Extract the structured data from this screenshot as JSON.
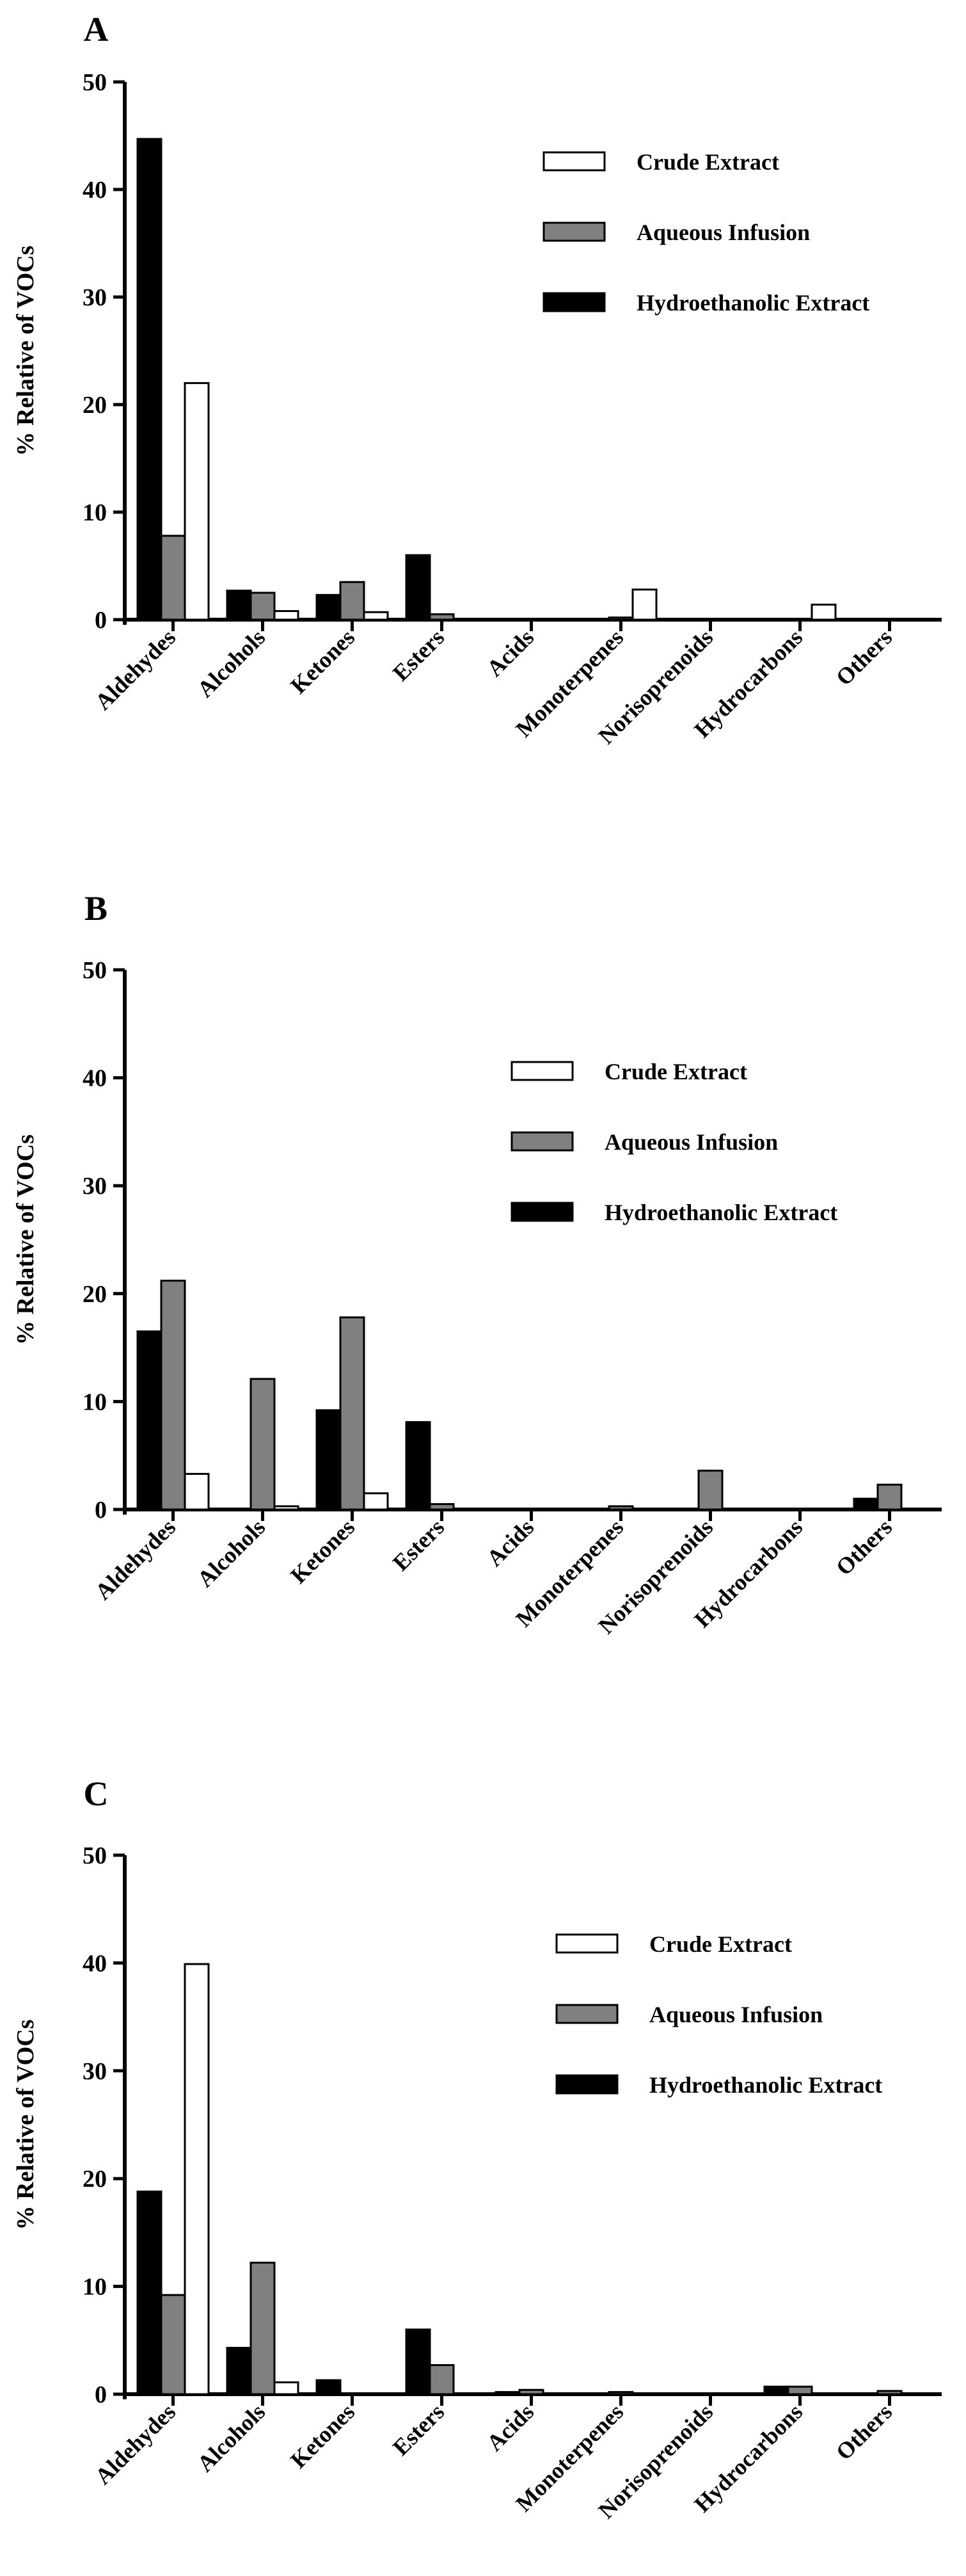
{
  "chart_data": [
    {
      "type": "bar",
      "panel": "A",
      "title": "",
      "xlabel": "",
      "ylabel": "% Relative of VOCs",
      "ylim": [
        0,
        50
      ],
      "yticks": [
        0,
        10,
        20,
        30,
        40,
        50
      ],
      "categories": [
        "Aldehydes",
        "Alcohols",
        "Ketones",
        "Esters",
        "Acids",
        "Monoterpenes",
        "Norisoprenoids",
        "Hydrocarbons",
        "Others"
      ],
      "legend_position": "top-right",
      "series": [
        {
          "name": "Hydroethanolic Extract",
          "color": "#000000",
          "values": [
            44.7,
            2.7,
            2.3,
            6.0,
            0,
            0,
            0,
            0,
            0
          ]
        },
        {
          "name": "Aqueous Infusion",
          "color": "#808080",
          "values": [
            7.8,
            2.5,
            3.5,
            0.5,
            0,
            0.2,
            0,
            0,
            0
          ]
        },
        {
          "name": "Crude Extract",
          "color": "#ffffff",
          "values": [
            22.0,
            0.8,
            0.7,
            0,
            0,
            2.8,
            0,
            1.4,
            0
          ]
        }
      ],
      "legend_order": [
        "Crude Extract",
        "Aqueous Infusion",
        "Hydroethanolic Extract"
      ]
    },
    {
      "type": "bar",
      "panel": "B",
      "title": "",
      "xlabel": "",
      "ylabel": "% Relative of VOCs",
      "ylim": [
        0,
        50
      ],
      "yticks": [
        0,
        10,
        20,
        30,
        40,
        50
      ],
      "categories": [
        "Aldehydes",
        "Alcohols",
        "Ketones",
        "Esters",
        "Acids",
        "Monoterpenes",
        "Norisoprenoids",
        "Hydrocarbons",
        "Others"
      ],
      "legend_position": "top-right",
      "series": [
        {
          "name": "Hydroethanolic Extract",
          "color": "#000000",
          "values": [
            16.5,
            0,
            9.2,
            8.1,
            0,
            0,
            0,
            0,
            1.0
          ]
        },
        {
          "name": "Aqueous Infusion",
          "color": "#808080",
          "values": [
            21.2,
            12.1,
            17.8,
            0.5,
            0,
            0.3,
            3.6,
            0,
            2.3
          ]
        },
        {
          "name": "Crude Extract",
          "color": "#ffffff",
          "values": [
            3.3,
            0.3,
            1.5,
            0,
            0,
            0,
            0,
            0,
            0
          ]
        }
      ],
      "legend_order": [
        "Crude Extract",
        "Aqueous Infusion",
        "Hydroethanolic Extract"
      ]
    },
    {
      "type": "bar",
      "panel": "C",
      "title": "",
      "xlabel": "",
      "ylabel": "% Relative of VOCs",
      "ylim": [
        0,
        50
      ],
      "yticks": [
        0,
        10,
        20,
        30,
        40,
        50
      ],
      "categories": [
        "Aldehydes",
        "Alcohols",
        "Ketones",
        "Esters",
        "Acids",
        "Monoterpenes",
        "Norisoprenoids",
        "Hydrocarbons",
        "Others"
      ],
      "legend_position": "top-right",
      "series": [
        {
          "name": "Hydroethanolic Extract",
          "color": "#000000",
          "values": [
            18.8,
            4.3,
            1.3,
            6.0,
            0.2,
            0,
            0,
            0.7,
            0
          ]
        },
        {
          "name": "Aqueous Infusion",
          "color": "#808080",
          "values": [
            9.2,
            12.2,
            0,
            2.7,
            0.4,
            0.2,
            0,
            0.7,
            0.3
          ]
        },
        {
          "name": "Crude Extract",
          "color": "#ffffff",
          "values": [
            39.9,
            1.1,
            0,
            0,
            0,
            0,
            0,
            0,
            0
          ]
        }
      ],
      "legend_order": [
        "Crude Extract",
        "Aqueous Infusion",
        "Hydroethanolic Extract"
      ]
    }
  ]
}
